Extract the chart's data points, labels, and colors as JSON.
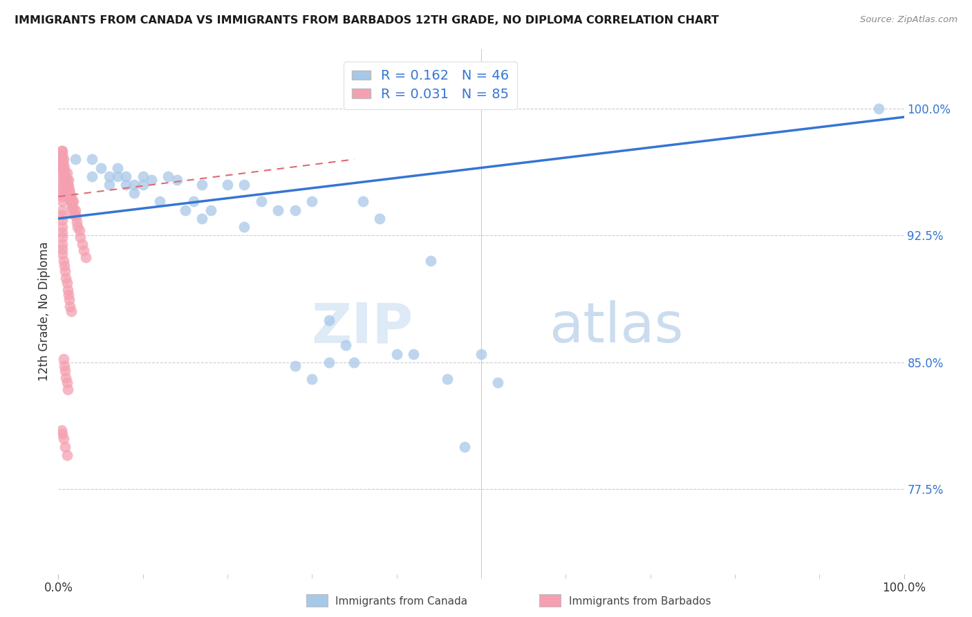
{
  "title": "IMMIGRANTS FROM CANADA VS IMMIGRANTS FROM BARBADOS 12TH GRADE, NO DIPLOMA CORRELATION CHART",
  "source": "Source: ZipAtlas.com",
  "ylabel": "12th Grade, No Diploma",
  "ylabel_right_labels": [
    "100.0%",
    "92.5%",
    "85.0%",
    "77.5%"
  ],
  "ylabel_right_values": [
    1.0,
    0.925,
    0.85,
    0.775
  ],
  "xlim": [
    0.0,
    1.0
  ],
  "ylim": [
    0.725,
    1.035
  ],
  "canada_R": 0.162,
  "canada_N": 46,
  "barbados_R": 0.031,
  "barbados_N": 85,
  "canada_color": "#a8c8e8",
  "barbados_color": "#f4a0b0",
  "canada_line_color": "#3575d4",
  "barbados_line_color": "#e06878",
  "background_color": "#ffffff",
  "watermark_zip": "ZIP",
  "watermark_atlas": "atlas",
  "canada_scatter_x": [
    0.02,
    0.04,
    0.04,
    0.05,
    0.06,
    0.06,
    0.07,
    0.07,
    0.08,
    0.08,
    0.09,
    0.09,
    0.1,
    0.1,
    0.11,
    0.12,
    0.13,
    0.14,
    0.15,
    0.16,
    0.17,
    0.18,
    0.2,
    0.22,
    0.24,
    0.26,
    0.28,
    0.3,
    0.17,
    0.22,
    0.32,
    0.34,
    0.36,
    0.38,
    0.4,
    0.42,
    0.44,
    0.3,
    0.35,
    0.46,
    0.48,
    0.5,
    0.52,
    0.97,
    0.28,
    0.32
  ],
  "canada_scatter_y": [
    0.97,
    0.97,
    0.96,
    0.965,
    0.96,
    0.955,
    0.965,
    0.96,
    0.96,
    0.955,
    0.955,
    0.95,
    0.96,
    0.955,
    0.958,
    0.945,
    0.96,
    0.958,
    0.94,
    0.945,
    0.955,
    0.94,
    0.955,
    0.955,
    0.945,
    0.94,
    0.94,
    0.945,
    0.935,
    0.93,
    0.875,
    0.86,
    0.945,
    0.935,
    0.855,
    0.855,
    0.91,
    0.84,
    0.85,
    0.84,
    0.8,
    0.855,
    0.838,
    1.0,
    0.848,
    0.85
  ],
  "barbados_scatter_x": [
    0.004,
    0.004,
    0.004,
    0.004,
    0.004,
    0.005,
    0.005,
    0.005,
    0.005,
    0.005,
    0.005,
    0.005,
    0.005,
    0.005,
    0.005,
    0.005,
    0.005,
    0.005,
    0.006,
    0.006,
    0.006,
    0.007,
    0.007,
    0.008,
    0.008,
    0.009,
    0.009,
    0.01,
    0.01,
    0.01,
    0.011,
    0.011,
    0.012,
    0.012,
    0.013,
    0.013,
    0.014,
    0.014,
    0.015,
    0.015,
    0.016,
    0.016,
    0.017,
    0.018,
    0.018,
    0.019,
    0.02,
    0.021,
    0.022,
    0.023,
    0.025,
    0.026,
    0.028,
    0.03,
    0.032,
    0.005,
    0.005,
    0.005,
    0.005,
    0.005,
    0.005,
    0.005,
    0.005,
    0.005,
    0.006,
    0.007,
    0.008,
    0.009,
    0.01,
    0.011,
    0.012,
    0.013,
    0.014,
    0.015,
    0.006,
    0.007,
    0.008,
    0.009,
    0.01,
    0.011,
    0.004,
    0.005,
    0.006,
    0.008,
    0.01
  ],
  "barbados_scatter_y": [
    0.975,
    0.972,
    0.97,
    0.968,
    0.966,
    0.975,
    0.973,
    0.97,
    0.967,
    0.965,
    0.963,
    0.96,
    0.958,
    0.955,
    0.953,
    0.95,
    0.948,
    0.945,
    0.97,
    0.967,
    0.963,
    0.965,
    0.962,
    0.96,
    0.957,
    0.955,
    0.952,
    0.962,
    0.958,
    0.955,
    0.955,
    0.951,
    0.958,
    0.954,
    0.952,
    0.948,
    0.95,
    0.946,
    0.948,
    0.944,
    0.945,
    0.941,
    0.938,
    0.945,
    0.941,
    0.938,
    0.94,
    0.936,
    0.933,
    0.93,
    0.928,
    0.924,
    0.92,
    0.916,
    0.912,
    0.94,
    0.937,
    0.934,
    0.93,
    0.927,
    0.924,
    0.92,
    0.917,
    0.914,
    0.91,
    0.907,
    0.904,
    0.9,
    0.897,
    0.893,
    0.89,
    0.887,
    0.883,
    0.88,
    0.852,
    0.848,
    0.845,
    0.841,
    0.838,
    0.834,
    0.81,
    0.808,
    0.805,
    0.8,
    0.795
  ]
}
